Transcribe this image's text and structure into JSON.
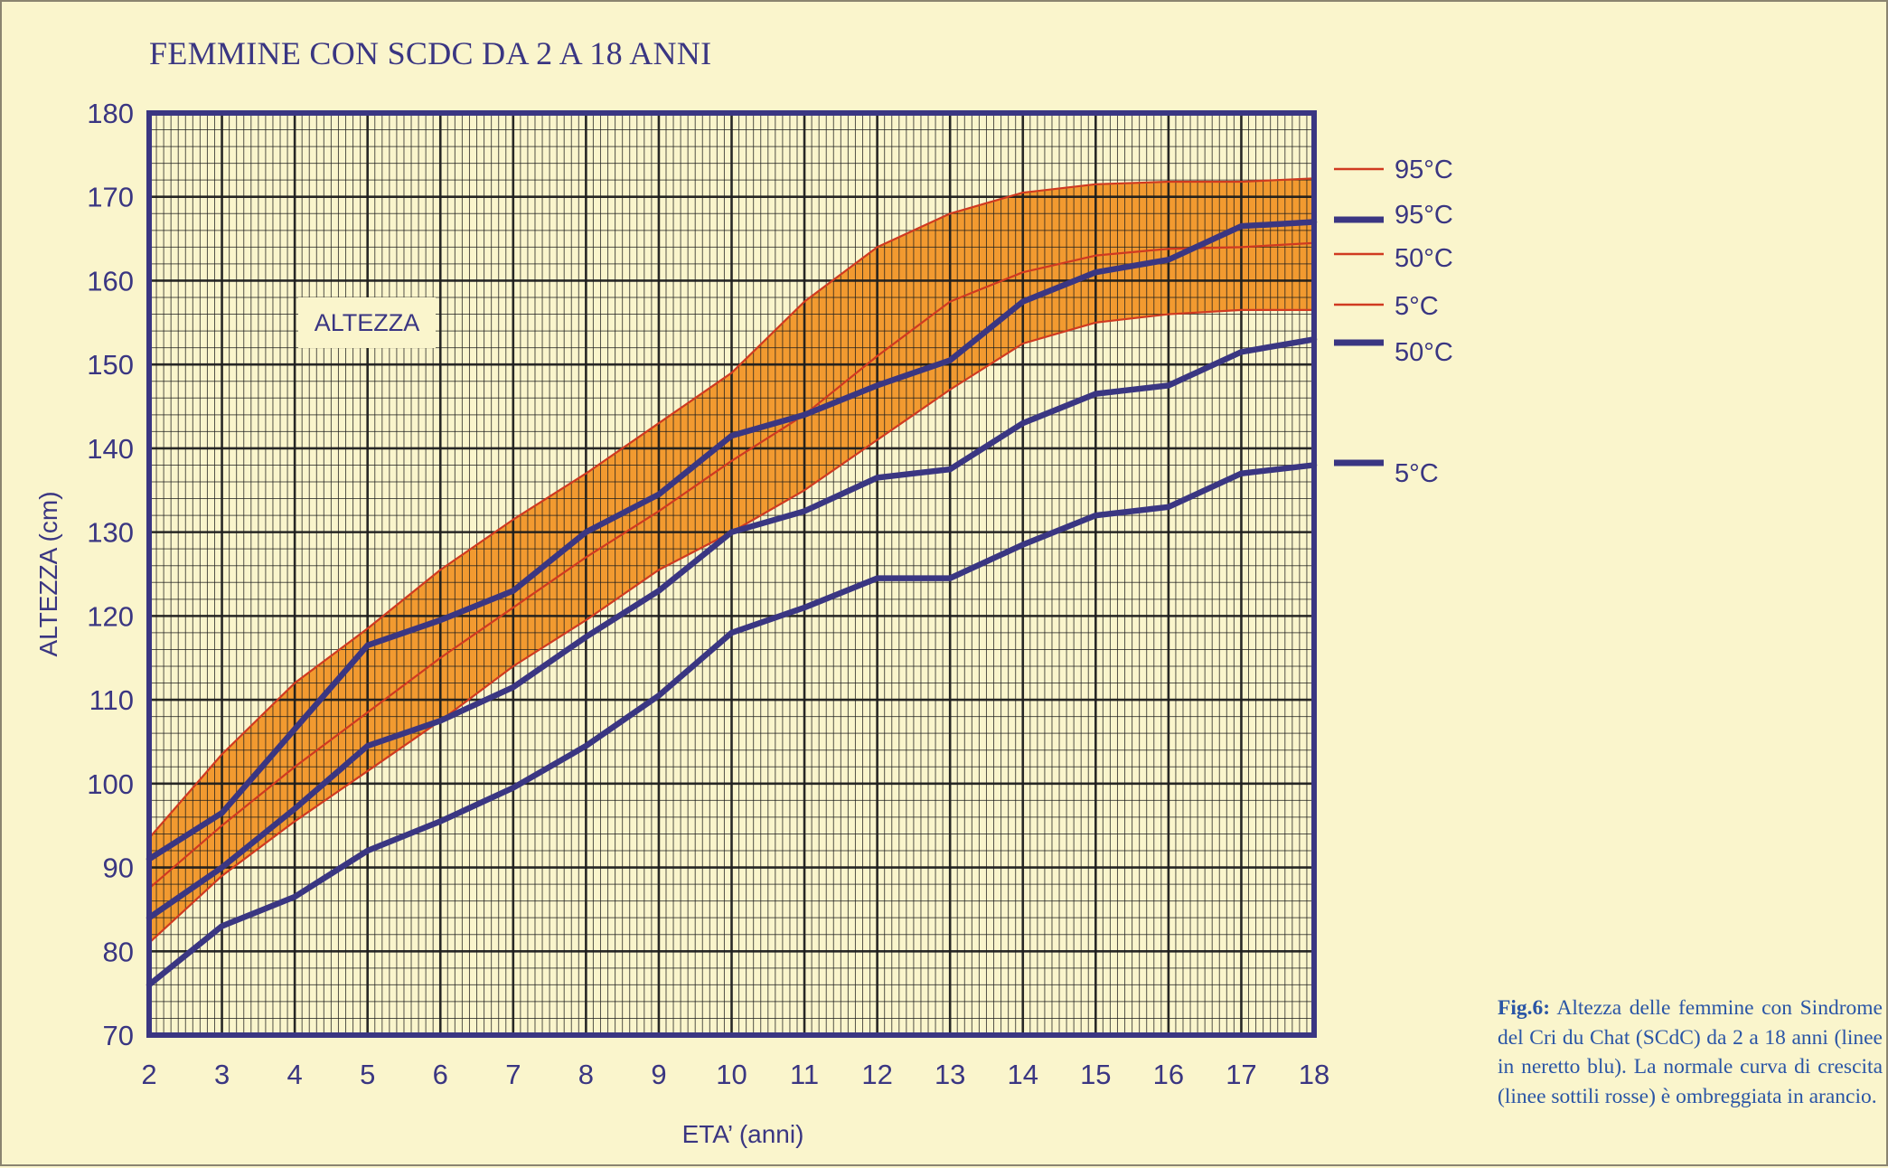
{
  "title": "FEMMINE CON SCDC DA 2 A 18 ANNI",
  "caption": {
    "label": "Fig.6:",
    "text": "Altezza delle femmine con Sindrome del Cri du Chat (SCdC) da 2 a 18 anni (linee in neretto blu). La normale curva di crescita (linee sottili rosse) è ombreggiata in arancio."
  },
  "chart_data": {
    "type": "line",
    "title": "FEMMINE CON SCDC DA 2 A 18 ANNI",
    "annotation": "ALTEZZA",
    "xlabel": "ETA’ (anni)",
    "ylabel": "ALTEZZA (cm)",
    "xlim": [
      2,
      18
    ],
    "ylim": [
      70,
      180
    ],
    "x_ticks": [
      2,
      3,
      4,
      5,
      6,
      7,
      8,
      9,
      10,
      11,
      12,
      13,
      14,
      15,
      16,
      17,
      18
    ],
    "y_ticks": [
      70,
      80,
      90,
      100,
      110,
      120,
      130,
      140,
      150,
      160,
      170,
      180
    ],
    "grid": true,
    "colors": {
      "background": "#faf5cc",
      "grid_major": "#1c1c1c",
      "frame": "#3a3682",
      "band": "#f29a30",
      "normal_line": "#d03a20",
      "scdc_line": "#3a3682"
    },
    "band": {
      "between": [
        "95°C",
        "5°C"
      ],
      "color": "#f29a30"
    },
    "x": [
      2,
      3,
      4,
      5,
      6,
      7,
      8,
      9,
      10,
      11,
      12,
      13,
      14,
      15,
      16,
      17,
      18
    ],
    "series": [
      {
        "name": "95°C",
        "group": "normal",
        "style": "thin-red",
        "values": [
          93.5,
          103.5,
          112,
          118.5,
          125.5,
          131.5,
          137,
          143,
          149,
          157.5,
          164,
          168,
          170.5,
          171.5,
          171.8,
          171.8,
          172.2
        ]
      },
      {
        "name": "50°C",
        "group": "normal",
        "style": "thin-red",
        "values": [
          87.5,
          95,
          102,
          108.5,
          115,
          121,
          127,
          132.5,
          138.5,
          144,
          151,
          157.5,
          161,
          163,
          163.8,
          164,
          164.5
        ]
      },
      {
        "name": "5°C",
        "group": "normal",
        "style": "thin-red",
        "values": [
          81,
          89,
          95.5,
          101.5,
          107.5,
          114,
          119.5,
          125.5,
          130,
          135,
          141,
          147,
          152.5,
          155,
          156,
          156.5,
          156.5
        ]
      },
      {
        "name": "95°C",
        "group": "scdc",
        "style": "bold-blue",
        "values": [
          91,
          96.5,
          106.5,
          116.5,
          119.5,
          123,
          130,
          134.5,
          141.5,
          144,
          147.5,
          150.5,
          157.5,
          161,
          162.5,
          166.5,
          167
        ]
      },
      {
        "name": "50°C",
        "group": "scdc",
        "style": "bold-blue",
        "values": [
          84,
          90,
          97,
          104.5,
          107.5,
          111.5,
          117.5,
          123,
          130,
          132.5,
          136.5,
          137.5,
          143,
          146.5,
          147.5,
          151.5,
          153
        ]
      },
      {
        "name": "5°C",
        "group": "scdc",
        "style": "bold-blue",
        "values": [
          76,
          83,
          86.5,
          92,
          95.5,
          99.5,
          104.5,
          110.5,
          118,
          121,
          124.5,
          124.5,
          128.5,
          132,
          133,
          137,
          138
        ]
      }
    ],
    "legend": {
      "placement": "right",
      "entries": [
        {
          "label": "95°C",
          "style": "thin-red",
          "y": 172.2
        },
        {
          "label": "95°C",
          "style": "bold-blue",
          "y": 167
        },
        {
          "label": "50°C",
          "style": "thin-red",
          "y": 164.5
        },
        {
          "label": "5°C",
          "style": "thin-red",
          "y": 156.5
        },
        {
          "label": "50°C",
          "style": "bold-blue",
          "y": 153
        },
        {
          "label": "5°C",
          "style": "bold-blue",
          "y": 138
        }
      ]
    }
  }
}
